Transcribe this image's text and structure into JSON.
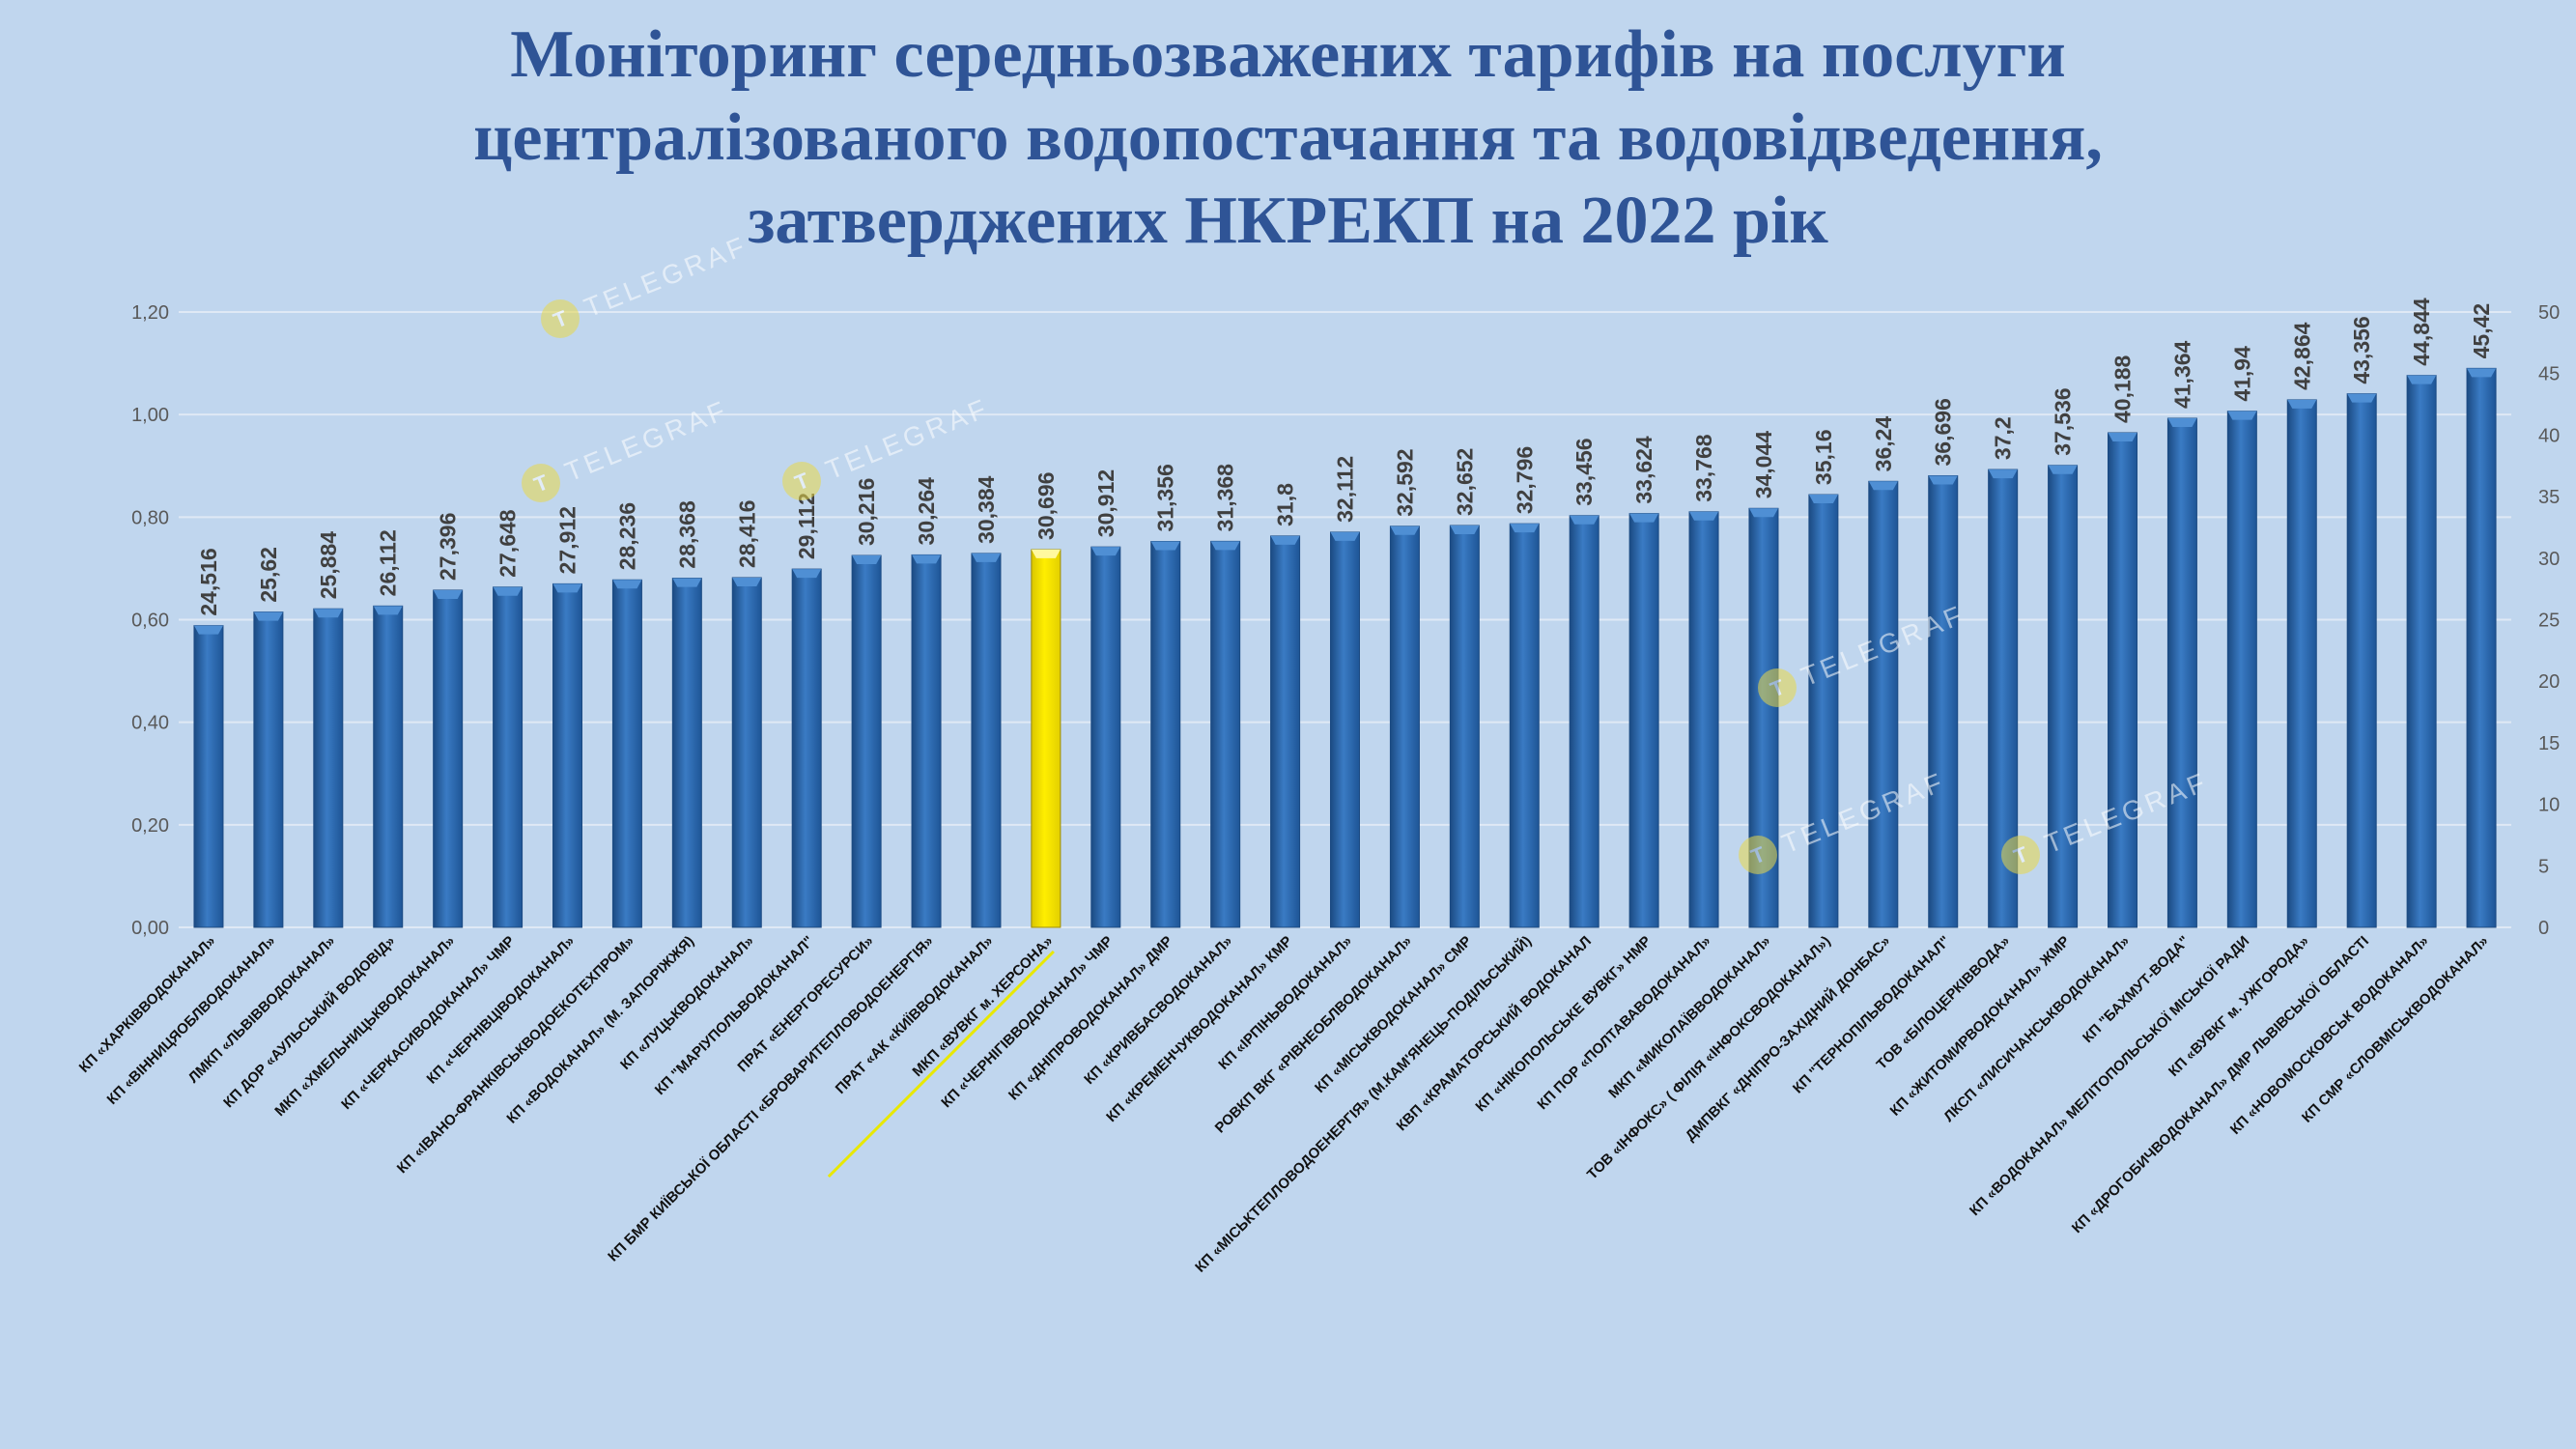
{
  "title_lines": [
    "Моніторинг середньозважених тарифів на послуги",
    "централізованого водопостачання та водовідведення,",
    "затверджених НКРЕКП на 2022 рік"
  ],
  "watermark_text": "TELEGRAF",
  "colors": {
    "background": "#c0d6ee",
    "title": "#2f5496",
    "bar": "#2e6db4",
    "bar_dark": "#1b4a82",
    "bar_light": "#4f8fd4",
    "highlight": "#ffee00",
    "grid": "#dfe9f5",
    "axis_text": "#595959",
    "value_text": "#404040"
  },
  "chart_data": {
    "type": "bar",
    "title": "Моніторинг середньозважених тарифів на послуги централізованого водопостачання та водовідведення, затверджених НКРЕКП на 2022 рік",
    "xlabel": "",
    "ylabel": "",
    "y_left_ticks": [
      "0,00",
      "0,20",
      "0,40",
      "0,60",
      "0,80",
      "1,00",
      "1,20"
    ],
    "y_left_lim": [
      0,
      1.2
    ],
    "y_right_ticks": [
      "0",
      "5",
      "10",
      "15",
      "20",
      "25",
      "30",
      "35",
      "40",
      "45",
      "50"
    ],
    "ylim": [
      0,
      50
    ],
    "grid": true,
    "legend": "none",
    "highlight_category": "МКП «ВУВКГ м. ХЕРСОНА»",
    "categories": [
      "КП «ХАРКІВВОДОКАНАЛ»",
      "КП «ВІННИЦЯОБЛВОДОКАНАЛ»",
      "ЛМКП «ЛЬВІВВОДОКАНАЛ»",
      "КП ДОР «АУЛЬСЬКИЙ ВОДОВІД»",
      "МКП «ХМЕЛЬНИЦЬКВОДОКАНАЛ»",
      "КП «ЧЕРКАСИВОДОКАНАЛ» ЧМР",
      "КП «ЧЕРНІВЦІВОДОКАНАЛ»",
      "КП «ІВАНО-ФРАНКІВСЬКВОДОЕКОТЕХПРОМ»",
      "КП «ВОДОКАНАЛ» (М. ЗАПОРІЖЖЯ)",
      "КП «ЛУЦЬКВОДОКАНАЛ»",
      "КП \"МАРІУПОЛЬВОДОКАНАЛ\"",
      "ПРАТ «ЕНЕРГОРЕСУРСИ»",
      "КП БМР КИЇВСЬКОЇ ОБЛАСТІ «БРОВАРИТЕПЛОВОДОЕНЕРГІЯ»",
      "ПРАТ «АК «КИЇВВОДОКАНАЛ»",
      "МКП «ВУВКГ м. ХЕРСОНА»",
      "КП «ЧЕРНІГІВВОДОКАНАЛ» ЧМР",
      "КП «ДНІПРОВОДОКАНАЛ» ДМР",
      "КП «КРИВБАСВОДОКАНАЛ»",
      "КП «КРЕМЕНЧУКВОДОКАНАЛ» КМР",
      "КП «ІРПІНЬВОДОКАНАЛ»",
      "РОВКП ВКГ «РІВНЕОБЛВОДОКАНАЛ»",
      "КП «МІСЬКВОДОКАНАЛ» СМР",
      "КП «МІСЬКТЕПЛОВОДОЕНЕРГІЯ» (М.КАМ'ЯНЕЦЬ-ПОДІЛЬСЬКИЙ)",
      "КВП «КРАМАТОРСЬКИЙ ВОДОКАНАЛ",
      "КП «НІКОПОЛЬСЬКЕ ВУВКГ» НМР",
      "КП ПОР «ПОЛТАВАВОДОКАНАЛ»",
      "МКП «МИКОЛАЇВВОДОКАНАЛ»",
      "ТОВ «ІНФОКС» ( ФІЛІЯ «ІНФОКСВОДОКАНАЛ»)",
      "ДМПВКГ «ДНІПРО-ЗАХІДНИЙ ДОНБАС»",
      "КП \"ТЕРНОПІЛЬВОДОКАНАЛ\"",
      "ТОВ «БІЛОЦЕРКІВВОДА»",
      "КП «ЖИТОМИРВОДОКАНАЛ» ЖМР",
      "ЛКСП «ЛИСИЧАНСЬКВОДОКАНАЛ»",
      "КП \"БАХМУТ-ВОДА\"",
      "КП «ВОДОКАНАЛ» МЕЛІТОПОЛЬСЬКОЇ МІСЬКОЇ РАДИ",
      "КП «ВУВКГ м. УЖГОРОДА»",
      "КП «ДРОГОБИЧВОДОКАНАЛ» ДМР ЛЬВІВСЬКОЇ ОБЛАСТІ",
      "КП «НОВОМОСКОВСЬК ВОДОКАНАЛ»",
      "КП СМР «СЛОВМІСЬКВОДОКАНАЛ»"
    ],
    "values": [
      24.516,
      25.62,
      25.884,
      26.112,
      27.396,
      27.648,
      27.912,
      28.236,
      28.368,
      28.416,
      29.112,
      30.216,
      30.264,
      30.384,
      30.696,
      30.912,
      31.356,
      31.368,
      31.8,
      32.112,
      32.592,
      32.652,
      32.796,
      33.456,
      33.624,
      33.768,
      34.044,
      35.16,
      36.24,
      36.696,
      37.2,
      37.536,
      40.188,
      41.364,
      41.94,
      42.864,
      43.356,
      44.844,
      45.42
    ],
    "value_labels": [
      "24,516",
      "25,62",
      "25,884",
      "26,112",
      "27,396",
      "27,648",
      "27,912",
      "28,236",
      "28,368",
      "28,416",
      "29,112",
      "30,216",
      "30,264",
      "30,384",
      "30,696",
      "30,912",
      "31,356",
      "31,368",
      "31,8",
      "32,112",
      "32,592",
      "32,652",
      "32,796",
      "33,456",
      "33,624",
      "33,768",
      "34,044",
      "35,16",
      "36,24",
      "36,696",
      "37,2",
      "37,536",
      "40,188",
      "41,364",
      "41,94",
      "42,864",
      "43,356",
      "44,844",
      "45,42"
    ]
  }
}
